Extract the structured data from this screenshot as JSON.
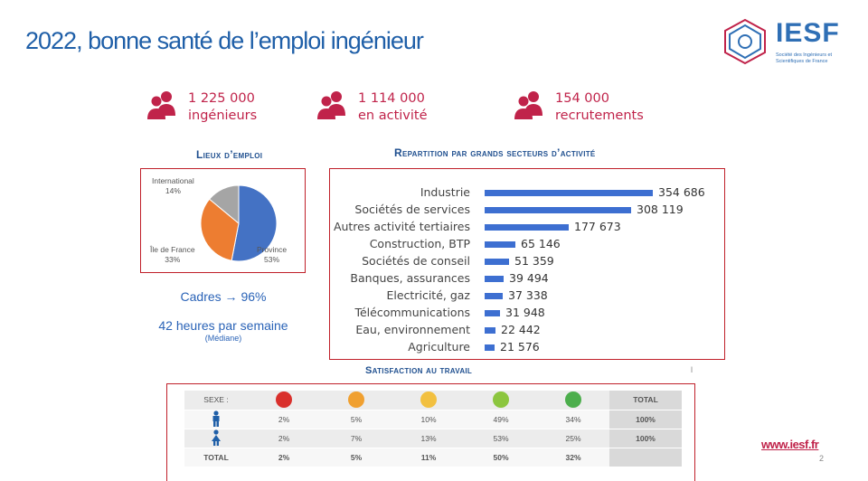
{
  "title": "2022, bonne santé de l’emploi ingénieur",
  "logo": {
    "name": "IESF",
    "subtitle_line1": "Société des Ingénieurs et",
    "subtitle_line2": "Scientifiques de France",
    "brand_color": "#2f6fb5"
  },
  "stats": [
    {
      "value": "1 225 000",
      "label": "ingénieurs",
      "icon": "people-icon"
    },
    {
      "value": "1 114 000",
      "label": "en activité",
      "icon": "people-icon"
    },
    {
      "value": "154 000",
      "label": "recrutements",
      "icon": "people-icon"
    }
  ],
  "accent_color": "#c0234a",
  "lieux": {
    "title": "Lieux d’emploi",
    "chart_data": {
      "type": "pie",
      "slices": [
        {
          "label": "Province",
          "pct": "53%",
          "value": 53,
          "color": "#4472c4"
        },
        {
          "label": "Île de France",
          "pct": "33%",
          "value": 33,
          "color": "#ed7d31"
        },
        {
          "label": "International",
          "pct": "14%",
          "value": 14,
          "color": "#a5a5a5"
        }
      ]
    }
  },
  "secteurs": {
    "title": "Repartition par grands secteurs d’activité",
    "chart_data": {
      "type": "bar",
      "orientation": "horizontal",
      "categories": [
        "Industrie",
        "Sociétés de services",
        "Autres activité tertiaires",
        "Construction, BTP",
        "Sociétés de conseil",
        "Banques, assurances",
        "Electricité, gaz",
        "Télécommunications",
        "Eau, environnement",
        "Agriculture"
      ],
      "values": [
        354686,
        308119,
        177673,
        65146,
        51359,
        39494,
        37338,
        31948,
        22442,
        21576
      ],
      "value_labels": [
        "354 686",
        "308 119",
        "177 673",
        "65 146",
        "51 359",
        "39 494",
        "37 338",
        "31 948",
        "22 442",
        "21 576"
      ],
      "bar_color": "#3d6fd1"
    }
  },
  "cadres": "Cadres → 96%",
  "heures": "42 heures par semaine",
  "mediane": "(Médiane)",
  "satisfaction": {
    "title": "Satisfaction au travail",
    "header_label": "SEXE :",
    "total_label": "TOTAL",
    "faces": [
      {
        "icon": "very-unsatisfied-face-icon",
        "color": "#d9302c"
      },
      {
        "icon": "unsatisfied-face-icon",
        "color": "#f0a030"
      },
      {
        "icon": "neutral-face-icon",
        "color": "#f2c040"
      },
      {
        "icon": "satisfied-face-icon",
        "color": "#8cc63f"
      },
      {
        "icon": "very-satisfied-face-icon",
        "color": "#4cae4c"
      }
    ],
    "rows": [
      {
        "icon": "man-icon",
        "values": [
          "2%",
          "5%",
          "10%",
          "49%",
          "34%"
        ],
        "total": "100%"
      },
      {
        "icon": "woman-icon",
        "values": [
          "2%",
          "7%",
          "13%",
          "53%",
          "25%"
        ],
        "total": "100%"
      }
    ],
    "totals": {
      "label": "TOTAL",
      "values": [
        "2%",
        "5%",
        "11%",
        "50%",
        "32%"
      ],
      "total": ""
    }
  },
  "website": "www.iesf.fr",
  "page_number": "2",
  "stray_mark": "l"
}
